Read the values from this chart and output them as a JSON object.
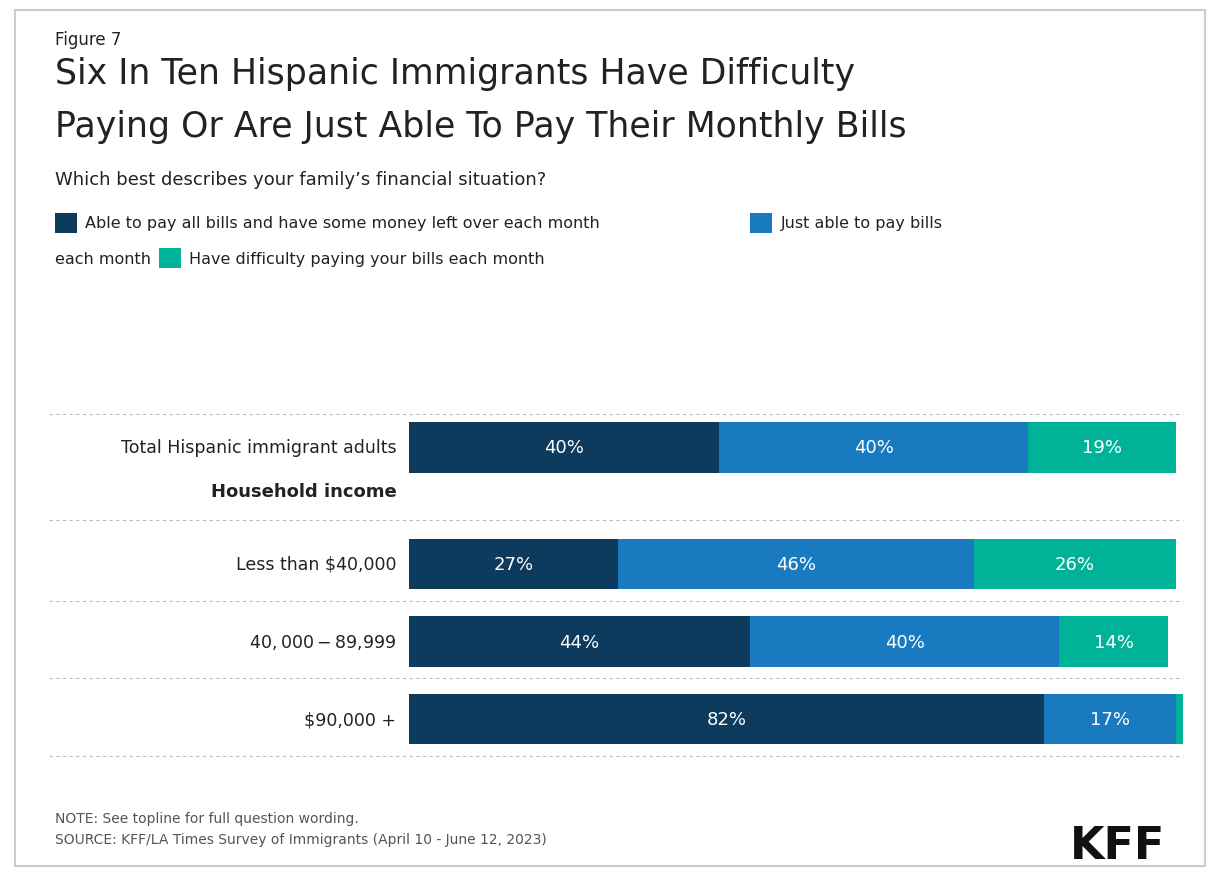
{
  "figure_label": "Figure 7",
  "title_line1": "Six In Ten Hispanic Immigrants Have Difficulty",
  "title_line2": "Paying Or Are Just Able To Pay Their Monthly Bills",
  "subtitle": "Which best describes your family’s financial situation?",
  "legend_1_text": "Able to pay all bills and have some money left over each month",
  "legend_2_text": "Just able to pay bills\neach month",
  "legend_3_prefix": "each month",
  "legend_3_text": "Have difficulty paying your bills each month",
  "data": [
    {
      "label": "Total Hispanic immigrant adults",
      "dark": 40,
      "mid": 40,
      "light": 19
    },
    {
      "label": "Less than $40,000",
      "dark": 27,
      "mid": 46,
      "light": 26
    },
    {
      "label": "$40,000-$89,999",
      "dark": 44,
      "mid": 40,
      "light": 14
    },
    {
      "label": "$90,000 +",
      "dark": 82,
      "mid": 17,
      "light": 1
    }
  ],
  "color_dark": "#0d3b5e",
  "color_mid": "#1a7abf",
  "color_light": "#00b398",
  "section_header": "Household income",
  "note_text": "NOTE: See topline for full question wording.\nSOURCE: KFF/LA Times Survey of Immigrants (April 10 - June 12, 2023)",
  "kff_text": "KFF",
  "background_color": "#ffffff",
  "border_color": "#cccccc",
  "divider_color": "#bbbbbb",
  "text_color": "#222222",
  "note_color": "#555555"
}
